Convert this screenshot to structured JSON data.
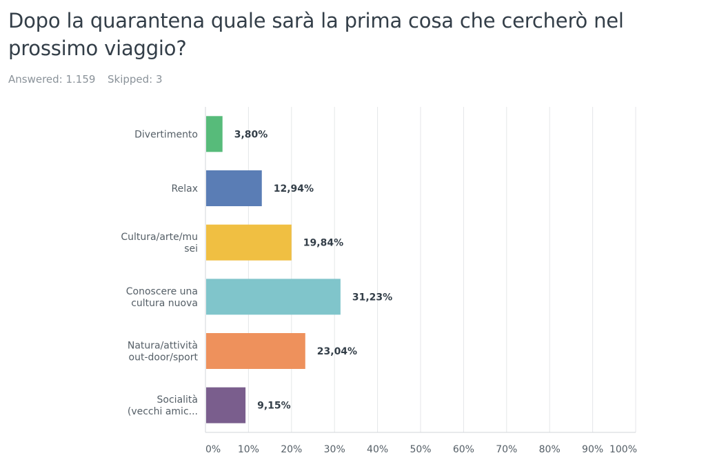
{
  "question": {
    "title": "Dopo la quarantena quale sarà la prima cosa che cercherò nel prossimo viaggio?",
    "answered_label": "Answered: 1.159",
    "skipped_label": "Skipped: 3"
  },
  "chart_data": {
    "type": "bar",
    "orientation": "horizontal",
    "title": "",
    "xlabel": "",
    "ylabel": "",
    "xlim": [
      0,
      100
    ],
    "grid": true,
    "categories": [
      [
        "Divertimento"
      ],
      [
        "Relax"
      ],
      [
        "Cultura/arte/mu",
        "sei"
      ],
      [
        "Conoscere una",
        "cultura nuova"
      ],
      [
        "Natura/attività",
        "out-door/sport"
      ],
      [
        "Socialità",
        "(vecchi amic..."
      ]
    ],
    "values": [
      3.8,
      12.94,
      19.84,
      31.23,
      23.04,
      9.15
    ],
    "value_labels": [
      "3,80%",
      "12,94%",
      "19,84%",
      "31,23%",
      "23,04%",
      "9,15%"
    ],
    "colors": [
      "#57bb7a",
      "#5a7db5",
      "#f0bf42",
      "#80c5cb",
      "#ee915c",
      "#7a5e8d"
    ],
    "x_ticks": [
      0,
      10,
      20,
      30,
      40,
      50,
      60,
      70,
      80,
      90,
      100
    ],
    "x_tick_labels": [
      "0%",
      "10%",
      "20%",
      "30%",
      "40%",
      "50%",
      "60%",
      "70%",
      "80%",
      "90%",
      "100%"
    ]
  }
}
